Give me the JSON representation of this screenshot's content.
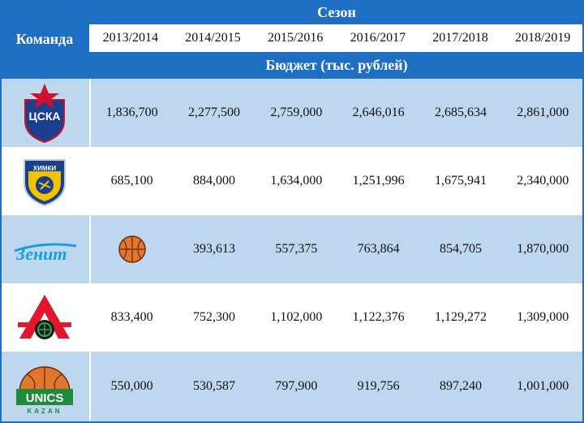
{
  "header": {
    "team_label": "Команда",
    "season_label": "Сезон",
    "budget_label": "Бюджет (тыс. рублей)",
    "years": [
      "2013/2014",
      "2014/2015",
      "2015/2016",
      "2016/2017",
      "2017/2018",
      "2018/2019"
    ]
  },
  "teams": [
    {
      "logo_text": "ЦСКА",
      "logo_icon": "cska-logo-icon",
      "values": [
        "1,836,700",
        "2,277,500",
        "2,759,000",
        "2,646,016",
        "2,685,634",
        "2,861,000"
      ]
    },
    {
      "logo_text": "ХИМКИ",
      "logo_icon": "khimki-logo-icon",
      "values": [
        "685,100",
        "884,000",
        "1,634,000",
        "1,251,996",
        "1,675,941",
        "2,340,000"
      ]
    },
    {
      "logo_text": "Зенит",
      "logo_icon": "zenit-logo-icon",
      "values": [
        "",
        "393,613",
        "557,375",
        "763,864",
        "854,705",
        "1,870,000"
      ],
      "first_cell_icon": "basketball-icon"
    },
    {
      "logo_text": "Л",
      "logo_icon": "lokomotiv-logo-icon",
      "values": [
        "833,400",
        "752,300",
        "1,102,000",
        "1,122,376",
        "1,129,272",
        "1,309,000"
      ]
    },
    {
      "logo_text": "UNICS",
      "logo_subtext": "KAZAN",
      "logo_icon": "unics-logo-icon",
      "values": [
        "550,000",
        "530,587",
        "797,900",
        "919,756",
        "897,240",
        "1,001,000"
      ]
    }
  ],
  "colors": {
    "header_blue": "#1e6fc1",
    "row_blue": "#bdd7ee",
    "row_white": "#ffffff"
  }
}
